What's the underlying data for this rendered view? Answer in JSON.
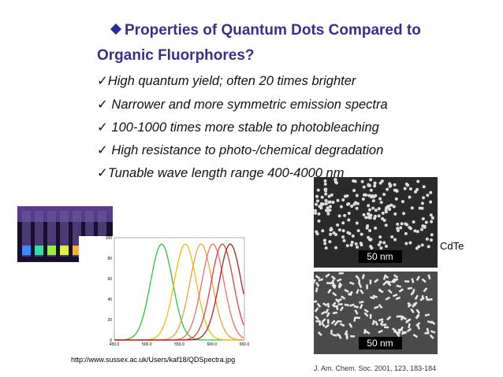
{
  "title_lines": [
    "Properties of Quantum Dots Compared to",
    "Organic Fluorphores?"
  ],
  "bullets": [
    "High quantum yield; often 20 times brighter",
    " Narrower and more symmetric emission spectra",
    " 100-1000 times more stable to photobleaching",
    " High resistance to photo-/chemical degradation",
    "Tunable wave length range 400-4000 nm"
  ],
  "spectra_figure": {
    "xticks": [
      "450.0",
      "500.0",
      "550.0",
      "600.0",
      "650.0"
    ],
    "yticks": [
      "0",
      "20",
      "40",
      "60",
      "80",
      "100"
    ]
  },
  "tem_figure": {
    "scale_labels": [
      "50 nm",
      "50 nm"
    ],
    "label": "CdTe"
  },
  "credits": {
    "spectra_url": "http://www.sussex.ac.uk/Users/kaf18/QDSpectra.jpg",
    "tem_source": "J. Am. Chem. Soc. 2001, 123, 183-184"
  }
}
